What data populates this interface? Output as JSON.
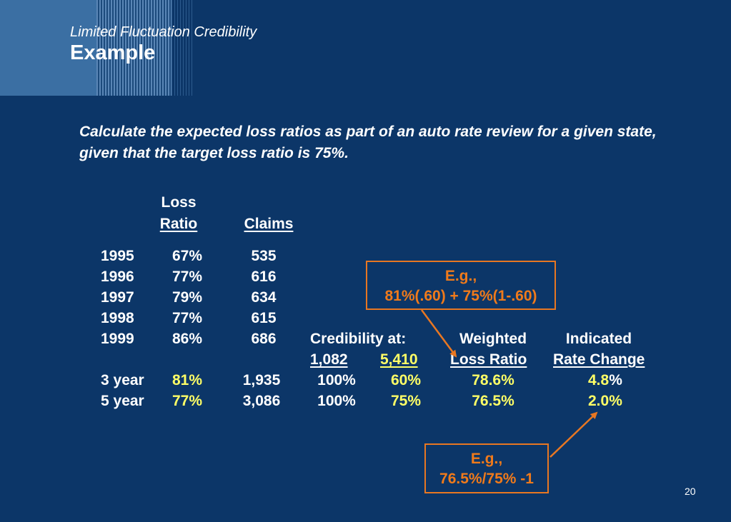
{
  "slide": {
    "subtitle": "Limited Fluctuation Credibility",
    "title": "Example",
    "intro": "Calculate the expected loss ratios as part of an auto rate review for a given state, given that the target loss ratio is 75%.",
    "page_number": "20"
  },
  "table": {
    "headers": {
      "loss_top": "Loss",
      "loss_ratio": "Ratio",
      "claims": "Claims",
      "credibility_at": "Credibility at:",
      "cred_1082": "1,082",
      "cred_5410": "5,410",
      "weighted": "Weighted",
      "weighted_lr": "Loss Ratio",
      "indicated": "Indicated",
      "rate_change": "Rate Change"
    },
    "years": [
      {
        "year": "1995",
        "loss_ratio": "67%",
        "claims": "535"
      },
      {
        "year": "1996",
        "loss_ratio": "77%",
        "claims": "616"
      },
      {
        "year": "1997",
        "loss_ratio": "79%",
        "claims": "634"
      },
      {
        "year": "1998",
        "loss_ratio": "77%",
        "claims": "615"
      },
      {
        "year": "1999",
        "loss_ratio": "86%",
        "claims": "686"
      }
    ],
    "summary": [
      {
        "label": "3 year",
        "loss_ratio": "81%",
        "claims": "1,935",
        "cred_1082": "100%",
        "cred_5410": "60%",
        "weighted": "78.6%",
        "rate_change_num": "4.8",
        "rate_change_pct": "%"
      },
      {
        "label": "5 year",
        "loss_ratio": "77%",
        "claims": "3,086",
        "cred_1082": "100%",
        "cred_5410": "75%",
        "weighted": "76.5%",
        "rate_change_num": "2.0%",
        "rate_change_pct": ""
      }
    ]
  },
  "callouts": {
    "top": {
      "line1": "E.g.,",
      "line2": "81%(.60) + 75%(1-.60)"
    },
    "bottom": {
      "line1": "E.g.,",
      "line2": "76.5%/75% -1"
    }
  },
  "colors": {
    "background": "#0c3668",
    "highlight": "#ffff66",
    "callout": "#e87722"
  }
}
